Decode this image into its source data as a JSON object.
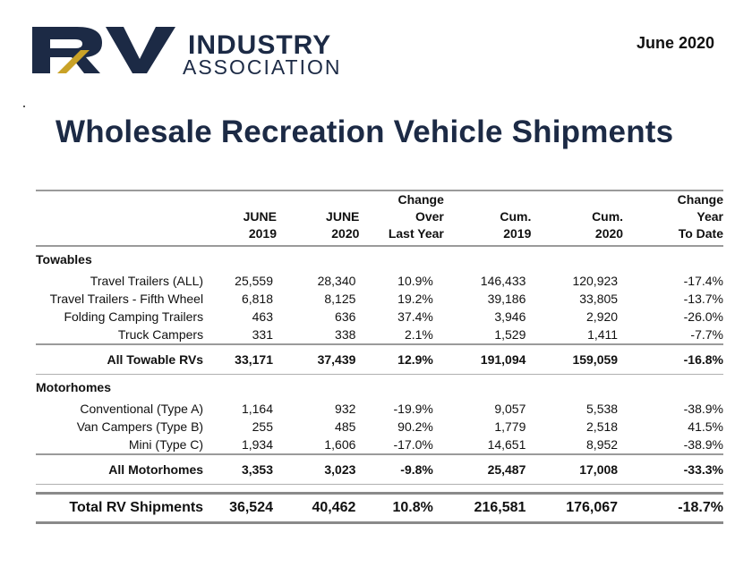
{
  "logo": {
    "rv": "RV",
    "industry": "INDUSTRY",
    "association": "ASSOCIATION",
    "colors": {
      "navy": "#1c2a45",
      "gold": "#c9a227"
    }
  },
  "date": "June  2020",
  "title": "Wholesale Recreation Vehicle Shipments",
  "header": {
    "c1": [
      "JUNE",
      "2019"
    ],
    "c2": [
      "JUNE",
      "2020"
    ],
    "c3": [
      "Change",
      "Over",
      "Last Year"
    ],
    "c4": [
      "Cum.",
      "2019"
    ],
    "c5": [
      "Cum.",
      "2020"
    ],
    "c6": [
      "Change",
      "Year",
      "To Date"
    ]
  },
  "towables": {
    "label": "Towables",
    "rows": [
      {
        "name": "Travel Trailers (ALL)",
        "v": [
          "25,559",
          "28,340",
          "10.9%",
          "146,433",
          "120,923",
          "-17.4%"
        ]
      },
      {
        "name": "Travel Trailers - Fifth Wheel",
        "v": [
          "6,818",
          "8,125",
          "19.2%",
          "39,186",
          "33,805",
          "-13.7%"
        ]
      },
      {
        "name": "Folding Camping Trailers",
        "v": [
          "463",
          "636",
          "37.4%",
          "3,946",
          "2,920",
          "-26.0%"
        ]
      },
      {
        "name": "Truck Campers",
        "v": [
          "331",
          "338",
          "2.1%",
          "1,529",
          "1,411",
          "-7.7%"
        ]
      }
    ],
    "subtotal": {
      "name": "All Towable RVs",
      "v": [
        "33,171",
        "37,439",
        "12.9%",
        "191,094",
        "159,059",
        "-16.8%"
      ]
    }
  },
  "motorhomes": {
    "label": "Motorhomes",
    "rows": [
      {
        "name": "Conventional (Type A)",
        "v": [
          "1,164",
          "932",
          "-19.9%",
          "9,057",
          "5,538",
          "-38.9%"
        ]
      },
      {
        "name": "Van Campers (Type B)",
        "v": [
          "255",
          "485",
          "90.2%",
          "1,779",
          "2,518",
          "41.5%"
        ]
      },
      {
        "name": "Mini (Type C)",
        "v": [
          "1,934",
          "1,606",
          "-17.0%",
          "14,651",
          "8,952",
          "-38.9%"
        ]
      }
    ],
    "subtotal": {
      "name": "All Motorhomes",
      "v": [
        "3,353",
        "3,023",
        "-9.8%",
        "25,487",
        "17,008",
        "-33.3%"
      ]
    }
  },
  "total": {
    "name": "Total RV Shipments",
    "v": [
      "36,524",
      "40,462",
      "10.8%",
      "216,581",
      "176,067",
      "-18.7%"
    ]
  }
}
